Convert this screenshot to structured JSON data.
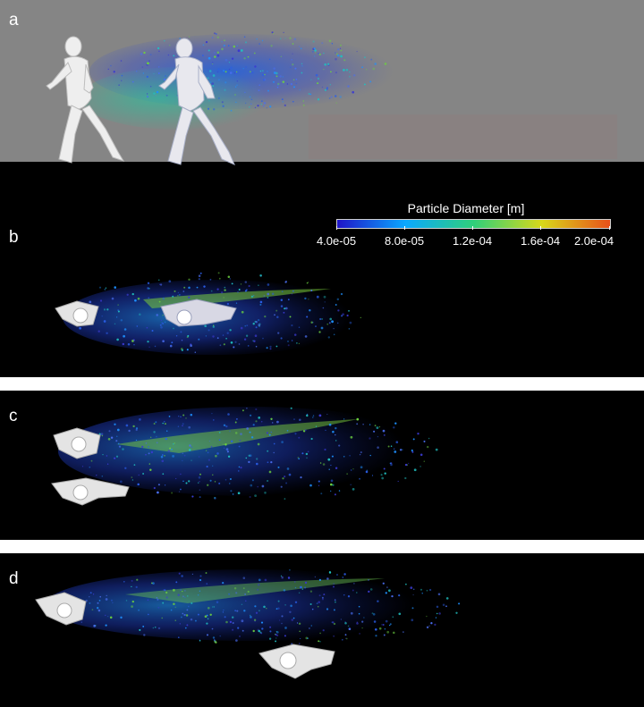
{
  "panels": {
    "a": {
      "label": "a"
    },
    "b": {
      "label": "b"
    },
    "c": {
      "label": "c"
    },
    "d": {
      "label": "d"
    }
  },
  "colorbar": {
    "title": "Particle Diameter [m]",
    "ticks": [
      "4.0e-05",
      "8.0e-05",
      "1.2e-04",
      "1.6e-04",
      "2.0e-04"
    ],
    "colors": [
      "#1f14c8",
      "#0aa8ff",
      "#2fd07a",
      "#d8d81a",
      "#e8501a"
    ]
  },
  "colors": {
    "background_a": "#858585",
    "ground": "#000000",
    "divider": "#ffffff",
    "figure": "#e6e6e6"
  }
}
